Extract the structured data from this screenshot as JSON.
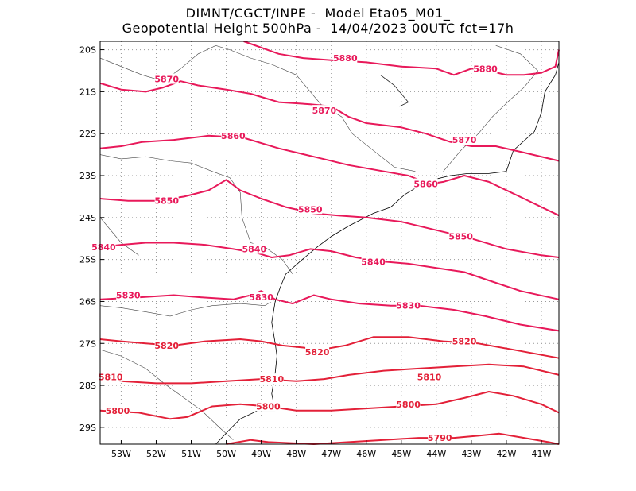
{
  "title": {
    "line1": "DIMNT/CGCT/INPE -  Model Eta05_M01_",
    "line2": "Geopotential Height 500hPa -  14/04/2023 00UTC fct=17h"
  },
  "axes": {
    "lon_min": -53.6,
    "lon_max": -40.5,
    "lat_min": -29.4,
    "lat_max": -19.8,
    "x_ticks": [
      {
        "lon": -53,
        "label": "53W"
      },
      {
        "lon": -52,
        "label": "52W"
      },
      {
        "lon": -51,
        "label": "51W"
      },
      {
        "lon": -50,
        "label": "50W"
      },
      {
        "lon": -49,
        "label": "49W"
      },
      {
        "lon": -48,
        "label": "48W"
      },
      {
        "lon": -47,
        "label": "47W"
      },
      {
        "lon": -46,
        "label": "46W"
      },
      {
        "lon": -45,
        "label": "45W"
      },
      {
        "lon": -44,
        "label": "44W"
      },
      {
        "lon": -43,
        "label": "43W"
      },
      {
        "lon": -42,
        "label": "42W"
      },
      {
        "lon": -41,
        "label": "41W"
      }
    ],
    "y_ticks": [
      {
        "lat": -20,
        "label": "20S"
      },
      {
        "lat": -21,
        "label": "21S"
      },
      {
        "lat": -22,
        "label": "22S"
      },
      {
        "lat": -23,
        "label": "23S"
      },
      {
        "lat": -24,
        "label": "24S"
      },
      {
        "lat": -25,
        "label": "25S"
      },
      {
        "lat": -26,
        "label": "26S"
      },
      {
        "lat": -27,
        "label": "27S"
      },
      {
        "lat": -28,
        "label": "28S"
      },
      {
        "lat": -29,
        "label": "29S"
      }
    ]
  },
  "contours": [
    {
      "value": 5880,
      "color": "#e8195a",
      "points": [
        [
          -49.5,
          -19.8
        ],
        [
          -48.5,
          -20.1
        ],
        [
          -47.8,
          -20.2
        ],
        [
          -47,
          -20.25
        ],
        [
          -46,
          -20.3
        ],
        [
          -45,
          -20.4
        ],
        [
          -44,
          -20.45
        ],
        [
          -43.5,
          -20.6
        ],
        [
          -43,
          -20.45
        ],
        [
          -42.5,
          -20.5
        ],
        [
          -42,
          -20.6
        ],
        [
          -41.5,
          -20.6
        ],
        [
          -41,
          -20.55
        ],
        [
          -40.6,
          -20.4
        ],
        [
          -40.5,
          -20.0
        ]
      ],
      "labels": [
        {
          "lon": -46.6,
          "lat": -20.2,
          "text": "5880"
        },
        {
          "lon": -42.6,
          "lat": -20.45,
          "text": "5880"
        }
      ]
    },
    {
      "value": 5870,
      "color": "#e8195a",
      "points": [
        [
          -53.6,
          -20.8
        ],
        [
          -53,
          -20.95
        ],
        [
          -52.3,
          -21.0
        ],
        [
          -51.8,
          -20.9
        ],
        [
          -51.3,
          -20.75
        ],
        [
          -50.8,
          -20.85
        ],
        [
          -50,
          -20.95
        ],
        [
          -49.3,
          -21.05
        ],
        [
          -48.5,
          -21.25
        ],
        [
          -47.6,
          -21.3
        ],
        [
          -47,
          -21.35
        ],
        [
          -46.5,
          -21.6
        ],
        [
          -46,
          -21.75
        ],
        [
          -45.5,
          -21.8
        ],
        [
          -45,
          -21.85
        ],
        [
          -44.3,
          -22.0
        ],
        [
          -43.6,
          -22.2
        ],
        [
          -43,
          -22.3
        ],
        [
          -42.3,
          -22.3
        ],
        [
          -41.5,
          -22.45
        ],
        [
          -40.5,
          -22.65
        ]
      ],
      "labels": [
        {
          "lon": -51.7,
          "lat": -20.7,
          "text": "5870"
        },
        {
          "lon": -47.2,
          "lat": -21.45,
          "text": "5870"
        },
        {
          "lon": -43.2,
          "lat": -22.15,
          "text": "5870"
        }
      ]
    },
    {
      "value": 5860,
      "color": "#e8195a",
      "points": [
        [
          -53.6,
          -22.35
        ],
        [
          -53,
          -22.3
        ],
        [
          -52.4,
          -22.2
        ],
        [
          -51.5,
          -22.15
        ],
        [
          -50.5,
          -22.05
        ],
        [
          -49.5,
          -22.1
        ],
        [
          -48.5,
          -22.35
        ],
        [
          -47.5,
          -22.55
        ],
        [
          -46.5,
          -22.75
        ],
        [
          -45.5,
          -22.9
        ],
        [
          -44.8,
          -23.0
        ],
        [
          -44.2,
          -23.2
        ],
        [
          -43.8,
          -23.15
        ],
        [
          -43.2,
          -23.0
        ],
        [
          -42.5,
          -23.15
        ],
        [
          -41.5,
          -23.55
        ],
        [
          -40.5,
          -23.95
        ]
      ],
      "labels": [
        {
          "lon": -49.8,
          "lat": -22.05,
          "text": "5860"
        },
        {
          "lon": -44.3,
          "lat": -23.2,
          "text": "5860"
        }
      ]
    },
    {
      "value": 5850,
      "color": "#e8195a",
      "points": [
        [
          -53.6,
          -23.55
        ],
        [
          -52.8,
          -23.6
        ],
        [
          -52,
          -23.6
        ],
        [
          -51.2,
          -23.5
        ],
        [
          -50.5,
          -23.35
        ],
        [
          -50,
          -23.1
        ],
        [
          -49.6,
          -23.35
        ],
        [
          -49,
          -23.55
        ],
        [
          -48.3,
          -23.75
        ],
        [
          -47.5,
          -23.9
        ],
        [
          -46.8,
          -23.95
        ],
        [
          -46,
          -24.0
        ],
        [
          -45,
          -24.1
        ],
        [
          -44,
          -24.3
        ],
        [
          -43,
          -24.5
        ],
        [
          -42,
          -24.75
        ],
        [
          -41,
          -24.9
        ],
        [
          -40.5,
          -24.95
        ]
      ],
      "labels": [
        {
          "lon": -51.7,
          "lat": -23.6,
          "text": "5850"
        },
        {
          "lon": -47.6,
          "lat": -23.8,
          "text": "5850"
        },
        {
          "lon": -43.3,
          "lat": -24.45,
          "text": "5850"
        }
      ]
    },
    {
      "value": 5840,
      "color": "#e8195a",
      "points": [
        [
          -53.6,
          -24.7
        ],
        [
          -53,
          -24.65
        ],
        [
          -52.3,
          -24.6
        ],
        [
          -51.5,
          -24.6
        ],
        [
          -50.6,
          -24.65
        ],
        [
          -49.8,
          -24.75
        ],
        [
          -49.1,
          -24.85
        ],
        [
          -48.7,
          -24.95
        ],
        [
          -48.2,
          -24.9
        ],
        [
          -47.6,
          -24.75
        ],
        [
          -47,
          -24.8
        ],
        [
          -46.3,
          -24.95
        ],
        [
          -45.5,
          -25.05
        ],
        [
          -44.8,
          -25.1
        ],
        [
          -44,
          -25.2
        ],
        [
          -43.2,
          -25.3
        ],
        [
          -42.5,
          -25.5
        ],
        [
          -41.6,
          -25.75
        ],
        [
          -40.5,
          -25.95
        ]
      ],
      "labels": [
        {
          "lon": -53.5,
          "lat": -24.7,
          "text": "5840"
        },
        {
          "lon": -49.2,
          "lat": -24.75,
          "text": "5840"
        },
        {
          "lon": -45.8,
          "lat": -25.05,
          "text": "5840"
        }
      ]
    },
    {
      "value": 5830,
      "color": "#e8195a",
      "points": [
        [
          -53.6,
          -25.95
        ],
        [
          -52.5,
          -25.9
        ],
        [
          -51.5,
          -25.85
        ],
        [
          -50.7,
          -25.9
        ],
        [
          -49.8,
          -25.95
        ],
        [
          -49.3,
          -25.85
        ],
        [
          -49.0,
          -25.75
        ],
        [
          -48.6,
          -25.95
        ],
        [
          -48.1,
          -26.05
        ],
        [
          -47.5,
          -25.85
        ],
        [
          -47,
          -25.95
        ],
        [
          -46.2,
          -26.05
        ],
        [
          -45.3,
          -26.1
        ],
        [
          -44.5,
          -26.1
        ],
        [
          -43.5,
          -26.2
        ],
        [
          -42.6,
          -26.35
        ],
        [
          -41.6,
          -26.55
        ],
        [
          -40.5,
          -26.7
        ]
      ],
      "labels": [
        {
          "lon": -52.8,
          "lat": -25.85,
          "text": "5830"
        },
        {
          "lon": -49.0,
          "lat": -25.9,
          "text": "5830"
        },
        {
          "lon": -44.8,
          "lat": -26.1,
          "text": "5830"
        }
      ]
    },
    {
      "value": 5820,
      "color": "#e32038",
      "points": [
        [
          -53.6,
          -26.9
        ],
        [
          -53,
          -26.95
        ],
        [
          -52.3,
          -27.0
        ],
        [
          -51.5,
          -27.05
        ],
        [
          -50.6,
          -26.95
        ],
        [
          -49.6,
          -26.9
        ],
        [
          -49.0,
          -26.95
        ],
        [
          -48.4,
          -27.05
        ],
        [
          -47.8,
          -27.1
        ],
        [
          -47.3,
          -27.15
        ],
        [
          -46.6,
          -27.05
        ],
        [
          -45.8,
          -26.85
        ],
        [
          -44.8,
          -26.85
        ],
        [
          -43.8,
          -26.95
        ],
        [
          -42.8,
          -27.0
        ],
        [
          -41.8,
          -27.15
        ],
        [
          -40.5,
          -27.35
        ]
      ],
      "labels": [
        {
          "lon": -51.7,
          "lat": -27.05,
          "text": "5820"
        },
        {
          "lon": -47.4,
          "lat": -27.2,
          "text": "5820"
        },
        {
          "lon": -43.2,
          "lat": -26.95,
          "text": "5820"
        }
      ]
    },
    {
      "value": 5810,
      "color": "#e32038",
      "points": [
        [
          -53.6,
          -27.85
        ],
        [
          -53,
          -27.9
        ],
        [
          -52,
          -27.95
        ],
        [
          -51,
          -27.95
        ],
        [
          -50,
          -27.9
        ],
        [
          -49,
          -27.85
        ],
        [
          -48,
          -27.9
        ],
        [
          -47.2,
          -27.85
        ],
        [
          -46.5,
          -27.75
        ],
        [
          -45.5,
          -27.65
        ],
        [
          -44.5,
          -27.6
        ],
        [
          -43.5,
          -27.55
        ],
        [
          -42.5,
          -27.5
        ],
        [
          -41.5,
          -27.55
        ],
        [
          -40.5,
          -27.75
        ]
      ],
      "labels": [
        {
          "lon": -53.3,
          "lat": -27.8,
          "text": "5810"
        },
        {
          "lon": -48.7,
          "lat": -27.85,
          "text": "5810"
        },
        {
          "lon": -44.2,
          "lat": -27.8,
          "text": "5810"
        }
      ]
    },
    {
      "value": 5800,
      "color": "#e32038",
      "points": [
        [
          -53.6,
          -28.6
        ],
        [
          -52.5,
          -28.65
        ],
        [
          -51.6,
          -28.8
        ],
        [
          -51.1,
          -28.75
        ],
        [
          -50.4,
          -28.5
        ],
        [
          -49.6,
          -28.45
        ],
        [
          -48.8,
          -28.5
        ],
        [
          -48,
          -28.6
        ],
        [
          -47,
          -28.6
        ],
        [
          -46,
          -28.55
        ],
        [
          -45,
          -28.5
        ],
        [
          -44,
          -28.45
        ],
        [
          -43.2,
          -28.3
        ],
        [
          -42.5,
          -28.15
        ],
        [
          -41.8,
          -28.25
        ],
        [
          -41,
          -28.45
        ],
        [
          -40.5,
          -28.65
        ]
      ],
      "labels": [
        {
          "lon": -53.1,
          "lat": -28.6,
          "text": "5800"
        },
        {
          "lon": -48.8,
          "lat": -28.5,
          "text": "5800"
        },
        {
          "lon": -44.8,
          "lat": -28.45,
          "text": "5800"
        }
      ]
    },
    {
      "value": 5790,
      "color": "#e32038",
      "points": [
        [
          -50.0,
          -29.4
        ],
        [
          -49.3,
          -29.3
        ],
        [
          -48.8,
          -29.35
        ],
        [
          -47.5,
          -29.4
        ],
        [
          -46.5,
          -29.35
        ],
        [
          -45.5,
          -29.3
        ],
        [
          -44.5,
          -29.25
        ],
        [
          -43.5,
          -29.25
        ],
        [
          -42.8,
          -29.2
        ],
        [
          -42.2,
          -29.15
        ],
        [
          -41.5,
          -29.25
        ],
        [
          -40.8,
          -29.35
        ],
        [
          -40.5,
          -29.4
        ]
      ],
      "labels": [
        {
          "lon": -43.9,
          "lat": -29.25,
          "text": "5790"
        }
      ]
    }
  ],
  "map_lines": {
    "coastline": [
      [
        -48.6,
        -28.6
      ],
      [
        -48.7,
        -28.2
      ],
      [
        -48.6,
        -27.7
      ],
      [
        -48.55,
        -27.3
      ],
      [
        -48.6,
        -27.0
      ],
      [
        -48.7,
        -26.5
      ],
      [
        -48.6,
        -26.0
      ],
      [
        -48.45,
        -25.65
      ],
      [
        -48.3,
        -25.35
      ],
      [
        -47.9,
        -25.05
      ],
      [
        -47.4,
        -24.7
      ],
      [
        -47.0,
        -24.45
      ],
      [
        -46.5,
        -24.2
      ],
      [
        -45.8,
        -23.9
      ],
      [
        -45.3,
        -23.75
      ],
      [
        -44.9,
        -23.45
      ],
      [
        -44.5,
        -23.25
      ],
      [
        -44.1,
        -23.1
      ],
      [
        -43.6,
        -23.0
      ],
      [
        -43.1,
        -22.95
      ],
      [
        -42.5,
        -22.95
      ],
      [
        -42.0,
        -22.9
      ],
      [
        -41.8,
        -22.4
      ],
      [
        -41.2,
        -21.95
      ],
      [
        -41.0,
        -21.5
      ],
      [
        -40.9,
        -21.0
      ],
      [
        -40.6,
        -20.6
      ],
      [
        -40.5,
        -20.3
      ]
    ],
    "coastline_south": [
      [
        -50.3,
        -29.4
      ],
      [
        -49.9,
        -29.05
      ],
      [
        -49.6,
        -28.8
      ],
      [
        -49.1,
        -28.6
      ],
      [
        -48.6,
        -28.6
      ]
    ],
    "borders": [
      [
        [
          -53.6,
          -22.5
        ],
        [
          -53.0,
          -22.6
        ],
        [
          -52.3,
          -22.55
        ],
        [
          -51.6,
          -22.65
        ],
        [
          -51.0,
          -22.7
        ],
        [
          -50.4,
          -22.9
        ],
        [
          -49.9,
          -23.05
        ],
        [
          -49.6,
          -23.4
        ],
        [
          -49.55,
          -24.0
        ],
        [
          -49.3,
          -24.6
        ],
        [
          -48.9,
          -24.7
        ],
        [
          -48.4,
          -25.0
        ],
        [
          -48.1,
          -25.35
        ]
      ],
      [
        [
          -53.6,
          -26.1
        ],
        [
          -53.0,
          -26.15
        ],
        [
          -52.3,
          -26.25
        ],
        [
          -51.6,
          -26.35
        ],
        [
          -51.0,
          -26.2
        ],
        [
          -50.4,
          -26.1
        ],
        [
          -49.6,
          -26.05
        ],
        [
          -48.9,
          -26.1
        ],
        [
          -48.6,
          -25.95
        ]
      ],
      [
        [
          -53.6,
          -27.15
        ],
        [
          -53.0,
          -27.3
        ],
        [
          -52.3,
          -27.6
        ],
        [
          -51.7,
          -28.0
        ],
        [
          -51.2,
          -28.3
        ],
        [
          -50.7,
          -28.6
        ],
        [
          -50.2,
          -29.0
        ],
        [
          -49.8,
          -29.3
        ]
      ],
      [
        [
          -53.6,
          -20.2
        ],
        [
          -53.0,
          -20.4
        ],
        [
          -52.4,
          -20.6
        ],
        [
          -51.8,
          -20.75
        ],
        [
          -51.3,
          -20.45
        ],
        [
          -50.8,
          -20.1
        ],
        [
          -50.3,
          -19.9
        ],
        [
          -49.9,
          -20.0
        ],
        [
          -49.3,
          -20.2
        ],
        [
          -48.7,
          -20.35
        ],
        [
          -48.0,
          -20.6
        ],
        [
          -47.6,
          -21.0
        ],
        [
          -47.3,
          -21.3
        ],
        [
          -46.7,
          -21.6
        ],
        [
          -46.4,
          -22.0
        ],
        [
          -45.8,
          -22.4
        ],
        [
          -45.2,
          -22.8
        ],
        [
          -44.6,
          -22.9
        ]
      ],
      [
        [
          -43.8,
          -22.9
        ],
        [
          -43.3,
          -22.4
        ],
        [
          -42.8,
          -22.0
        ],
        [
          -42.4,
          -21.6
        ],
        [
          -41.9,
          -21.2
        ],
        [
          -41.5,
          -20.9
        ],
        [
          -41.1,
          -20.5
        ],
        [
          -41.6,
          -20.1
        ],
        [
          -42.3,
          -19.9
        ]
      ],
      [
        [
          -53.6,
          -24.0
        ],
        [
          -53.3,
          -24.3
        ],
        [
          -53.0,
          -24.6
        ],
        [
          -52.5,
          -24.9
        ]
      ]
    ],
    "islands": [
      [
        -45.6,
        -20.6
      ],
      [
        -45.2,
        -20.85
      ],
      [
        -45.0,
        -21.05
      ],
      [
        -44.8,
        -21.25
      ],
      [
        -45.05,
        -21.35
      ]
    ]
  }
}
